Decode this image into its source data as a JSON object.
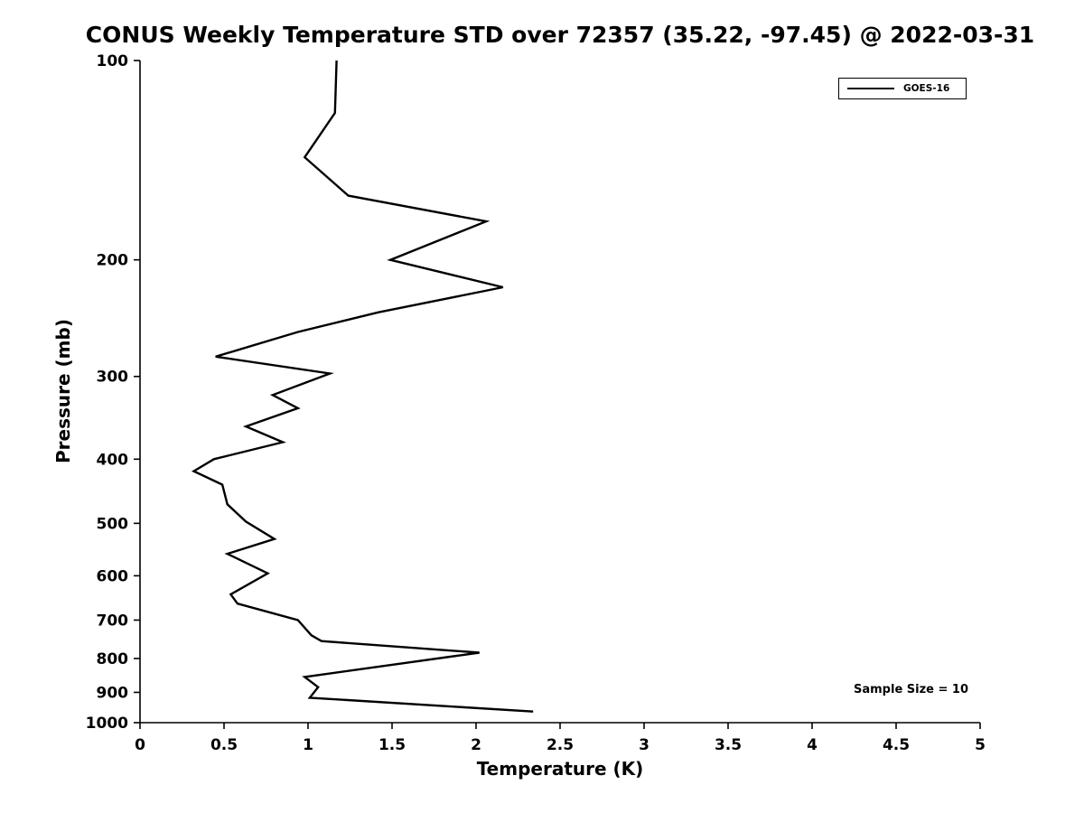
{
  "chart_data": {
    "type": "line",
    "title": "CONUS Weekly Temperature STD over 72357 (35.22, -97.45) @ 2022-03-31",
    "xlabel": "Temperature (K)",
    "ylabel": "Pressure (mb)",
    "xlim": [
      0,
      5
    ],
    "ylim": [
      100,
      1000
    ],
    "y_scale": "log",
    "y_inverted": true,
    "grid": false,
    "legend_position": "top-right",
    "x_ticks": [
      0,
      0.5,
      1,
      1.5,
      2,
      2.5,
      3,
      3.5,
      4,
      4.5,
      5
    ],
    "y_ticks": [
      100,
      200,
      300,
      400,
      500,
      600,
      700,
      800,
      900,
      1000
    ],
    "annotation": "Sample Size = 10",
    "sample_size": 10,
    "line_color": "#000000",
    "series": [
      {
        "name": "GOES-16",
        "color": "#000000",
        "points_format": [
          "pressure_mb",
          "temperature_std_K"
        ],
        "points": [
          [
            100,
            1.17
          ],
          [
            120,
            1.16
          ],
          [
            140,
            0.98
          ],
          [
            160,
            1.24
          ],
          [
            175,
            2.06
          ],
          [
            200,
            1.49
          ],
          [
            220,
            2.16
          ],
          [
            240,
            1.42
          ],
          [
            257,
            0.94
          ],
          [
            280,
            0.45
          ],
          [
            297,
            1.13
          ],
          [
            320,
            0.79
          ],
          [
            335,
            0.94
          ],
          [
            357,
            0.63
          ],
          [
            377,
            0.85
          ],
          [
            400,
            0.44
          ],
          [
            417,
            0.32
          ],
          [
            437,
            0.49
          ],
          [
            468,
            0.52
          ],
          [
            497,
            0.63
          ],
          [
            528,
            0.8
          ],
          [
            556,
            0.52
          ],
          [
            595,
            0.76
          ],
          [
            640,
            0.54
          ],
          [
            661,
            0.58
          ],
          [
            700,
            0.94
          ],
          [
            738,
            1.02
          ],
          [
            753,
            1.08
          ],
          [
            784,
            2.02
          ],
          [
            853,
            0.98
          ],
          [
            884,
            1.06
          ],
          [
            917,
            1.01
          ],
          [
            962,
            2.34
          ]
        ]
      }
    ]
  }
}
